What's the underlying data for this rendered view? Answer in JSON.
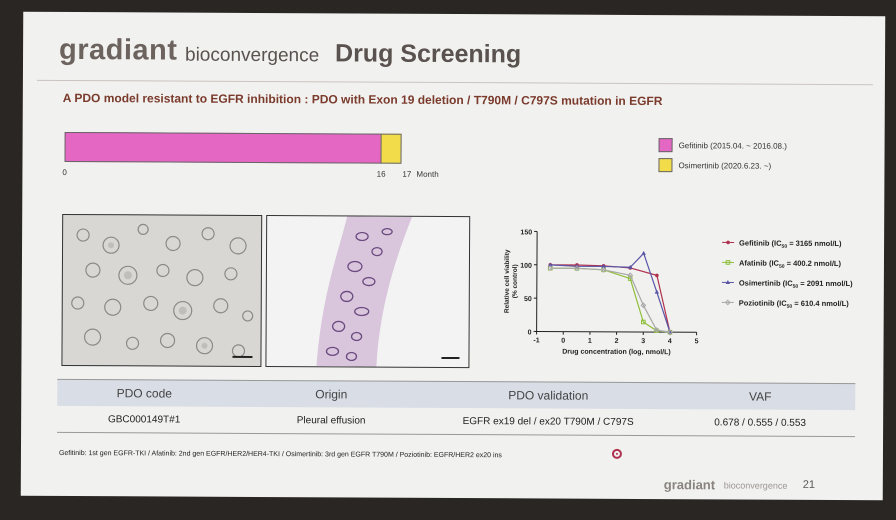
{
  "header": {
    "logo": "gradiant",
    "logo_sub": "bioconvergence",
    "title": "Drug Screening"
  },
  "subtitle": "A PDO model resistant to EGFR inhibition : PDO with Exon 19 deletion / T790M / C797S mutation in EGFR",
  "timeline": {
    "segments": [
      {
        "label": "Gefitinib (2015.04. ~ 2016.08.)",
        "start": 0,
        "end": 16,
        "color": "#e567c4"
      },
      {
        "label": "Osimertinib (2020.6.23. ~)",
        "start": 16,
        "end": 17,
        "color": "#f2dc4a"
      }
    ],
    "tick_labels": [
      "0",
      "16",
      "17"
    ],
    "unit": "Month"
  },
  "chart_data": {
    "type": "line",
    "xlabel": "Drug concentration (log, nmol/L)",
    "ylabel": "Relative cell viability (% control)",
    "xlim": [
      -1,
      5
    ],
    "ylim": [
      0,
      150
    ],
    "xticks": [
      "-1",
      "0",
      "1",
      "2",
      "3",
      "4",
      "5"
    ],
    "yticks": [
      "0",
      "50",
      "100",
      "150"
    ],
    "legend_placement": "right",
    "series": [
      {
        "name": "Gefitinib (IC50 = 3165 nmol/L)",
        "color": "#b0324f",
        "marker": "circle",
        "x": [
          -0.5,
          0.5,
          1.5,
          2.5,
          3.5,
          4.0
        ],
        "y": [
          100,
          100,
          99,
          96,
          85,
          0
        ]
      },
      {
        "name": "Afatinib (IC50 = 400.2 nmol/L)",
        "color": "#8ebf3a",
        "marker": "square",
        "x": [
          -0.5,
          0.5,
          1.5,
          2.5,
          3.0,
          3.5,
          4.0
        ],
        "y": [
          95,
          95,
          93,
          80,
          15,
          2,
          0
        ]
      },
      {
        "name": "Osimertinib (IC50 = 2091 nmol/L)",
        "color": "#5a56a6",
        "marker": "triangle",
        "x": [
          -0.5,
          0.5,
          1.5,
          2.5,
          3.0,
          3.5,
          4.0
        ],
        "y": [
          100,
          98,
          98,
          97,
          118,
          60,
          0
        ]
      },
      {
        "name": "Poziotinib (IC50 = 610.4 nmol/L)",
        "color": "#a8a8a8",
        "marker": "diamond",
        "x": [
          -0.5,
          0.5,
          1.5,
          2.5,
          3.0,
          3.5,
          4.0
        ],
        "y": [
          95,
          95,
          93,
          85,
          40,
          3,
          0
        ]
      }
    ]
  },
  "chart_legend": [
    {
      "name": "Gefitinib",
      "ic": "3165 nmol/L"
    },
    {
      "name": "Afatinib",
      "ic": "400.2 nmol/L"
    },
    {
      "name": "Osimertinib",
      "ic": "2091 nmol/L"
    },
    {
      "name": "Poziotinib",
      "ic": "610.4 nmol/L"
    }
  ],
  "table": {
    "headers": [
      "PDO code",
      "Origin",
      "PDO validation",
      "VAF"
    ],
    "rows": [
      [
        "GBC000149T#1",
        "Pleural effusion",
        "EGFR ex19 del / ex20 T790M / C797S",
        "0.678 / 0.555 / 0.553"
      ]
    ]
  },
  "footnote": "Gefitinib: 1st gen EGFR-TKI / Afatinib: 2nd gen EGFR/HER2/HER4-TKI / Osimertinib: 3rd gen EGFR T790M / Poziotinib: EGFR/HER2 ex20 ins",
  "footer": {
    "logo": "gradiant",
    "logo_sub": "bioconvergence",
    "page": "21"
  }
}
